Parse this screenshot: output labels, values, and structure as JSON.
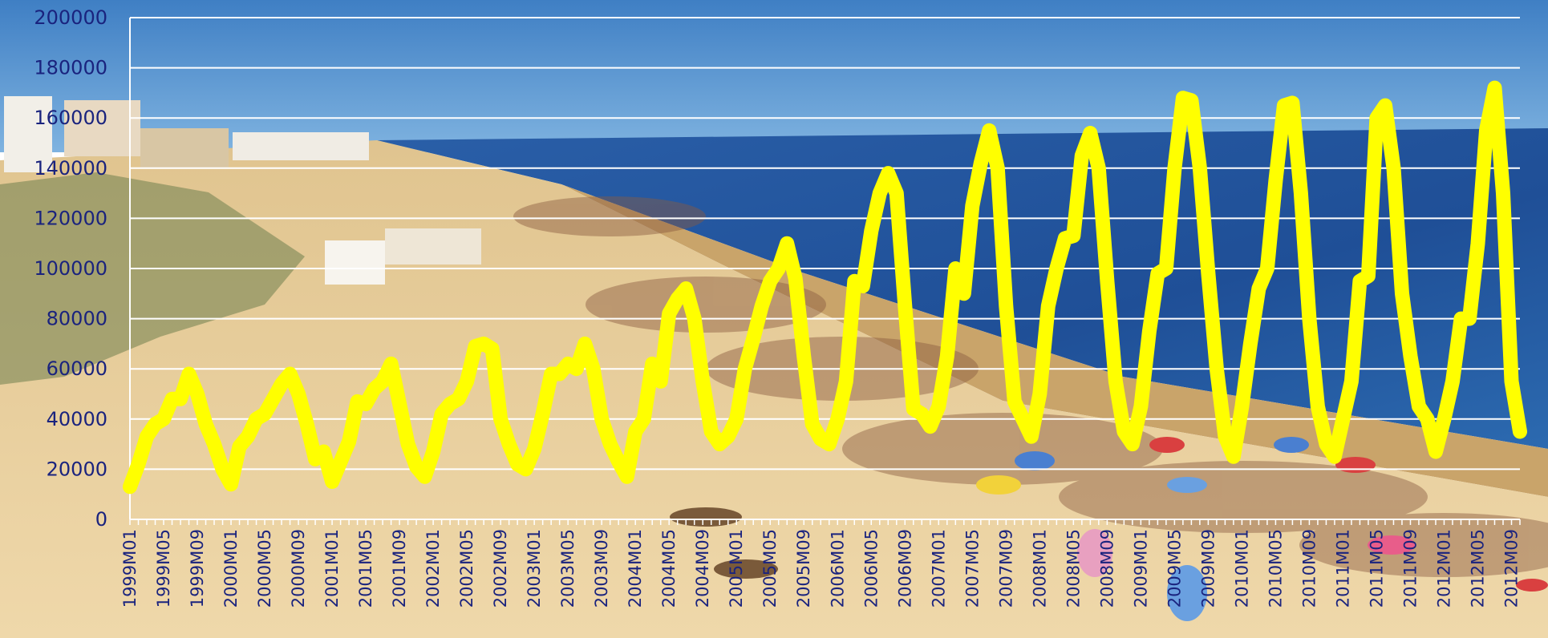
{
  "chart_data": {
    "type": "line",
    "title": "",
    "xlabel": "",
    "ylabel": "",
    "ylim": [
      0,
      200000
    ],
    "yticks": [
      0,
      20000,
      40000,
      60000,
      80000,
      100000,
      120000,
      140000,
      160000,
      180000,
      200000
    ],
    "grid": true,
    "legend": "none",
    "line_color": "#ffff00",
    "background": "photo of a crowded sandy beach with sea, dunes and buildings",
    "x_start": "1999M01",
    "x_label_step_months": 4,
    "x_labels": [
      "1999M01",
      "1999M05",
      "1999M09",
      "2000M01",
      "2000M05",
      "2000M09",
      "2001M01",
      "2001M05",
      "2001M09",
      "2002M01",
      "2002M05",
      "2002M09",
      "2003M01",
      "2003M05",
      "2003M09",
      "2004M01",
      "2004M05",
      "2004M09",
      "2005M01",
      "2005M05",
      "2005M09",
      "2006M01",
      "2006M05",
      "2006M09",
      "2007M01",
      "2007M05",
      "2007M09",
      "2008M01",
      "2008M05",
      "2008M09",
      "2009M01",
      "2009M05",
      "2009M09",
      "2010M01",
      "2010M05",
      "2010M09",
      "2011M01",
      "2011M05",
      "2011M09",
      "2012M01",
      "2012M05",
      "2012M09"
    ],
    "series": [
      {
        "name": "",
        "values": [
          13000,
          22000,
          33000,
          38000,
          40000,
          48000,
          48000,
          58000,
          50000,
          38000,
          30000,
          20000,
          14000,
          29000,
          33000,
          40000,
          42000,
          48000,
          54000,
          58000,
          50000,
          38000,
          24000,
          27000,
          15000,
          23000,
          31000,
          47000,
          46000,
          52000,
          55000,
          62000,
          46000,
          30000,
          21000,
          17000,
          27000,
          42000,
          46000,
          48000,
          55000,
          69000,
          70000,
          68000,
          40000,
          30000,
          22000,
          20000,
          28000,
          42000,
          58000,
          58000,
          62000,
          60000,
          70000,
          60000,
          40000,
          30000,
          23000,
          17000,
          35000,
          40000,
          62000,
          55000,
          82000,
          88000,
          92000,
          80000,
          55000,
          35000,
          30000,
          33000,
          40000,
          60000,
          72000,
          85000,
          95000,
          100000,
          110000,
          96000,
          65000,
          38000,
          32000,
          30000,
          40000,
          55000,
          95000,
          93000,
          115000,
          130000,
          138000,
          130000,
          85000,
          44000,
          42000,
          37000,
          45000,
          65000,
          100000,
          90000,
          125000,
          142000,
          155000,
          140000,
          85000,
          47000,
          40000,
          33000,
          50000,
          85000,
          100000,
          112000,
          113000,
          145000,
          154000,
          140000,
          95000,
          55000,
          35000,
          30000,
          45000,
          75000,
          98000,
          100000,
          140000,
          168000,
          167000,
          140000,
          98000,
          60000,
          33000,
          25000,
          45000,
          70000,
          92000,
          100000,
          135000,
          165000,
          166000,
          130000,
          80000,
          45000,
          30000,
          25000,
          40000,
          55000,
          95000,
          97000,
          160000,
          165000,
          140000,
          90000,
          65000,
          45000,
          40000,
          27000,
          40000,
          55000,
          80000,
          80000,
          110000,
          155000,
          172000,
          130000,
          55000,
          35000
        ]
      }
    ]
  }
}
